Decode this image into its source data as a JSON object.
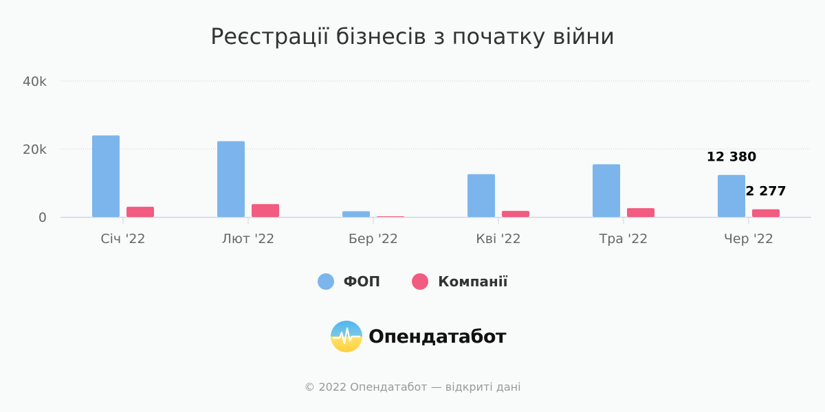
{
  "colors": {
    "fop": "#7cb5ec",
    "companies": "#f15c80",
    "grid": "#cccccc",
    "axis": "#ccd6eb",
    "tick_text": "#666666"
  },
  "legend": {
    "fop_label": "ФОП",
    "companies_label": "Компанії"
  },
  "logo": {
    "text": "Опендатабот",
    "icon": "opendatabot-logo-icon"
  },
  "footer": {
    "text": "© 2022 Опендатабот — відкриті дані"
  },
  "chart_data": {
    "type": "bar",
    "title": "Реєстрації бізнесів з початку війни",
    "categories": [
      "Січ '22",
      "Лют '22",
      "Бер '22",
      "Кві '22",
      "Тра '22",
      "Чер '22"
    ],
    "series": [
      {
        "name": "ФОП",
        "values": [
          24000,
          22300,
          1700,
          12600,
          15500,
          12380
        ]
      },
      {
        "name": "Компанії",
        "values": [
          3000,
          3800,
          200,
          1800,
          2600,
          2277
        ]
      }
    ],
    "ylim": [
      0,
      40000
    ],
    "yticks": [
      0,
      20000,
      40000
    ],
    "ytick_labels": [
      "0",
      "20k",
      "40k"
    ],
    "data_labels": [
      {
        "series": 0,
        "index": 5,
        "text": "12 380"
      },
      {
        "series": 1,
        "index": 5,
        "text": "2 277"
      }
    ],
    "grid": true,
    "legend_position": "bottom"
  }
}
